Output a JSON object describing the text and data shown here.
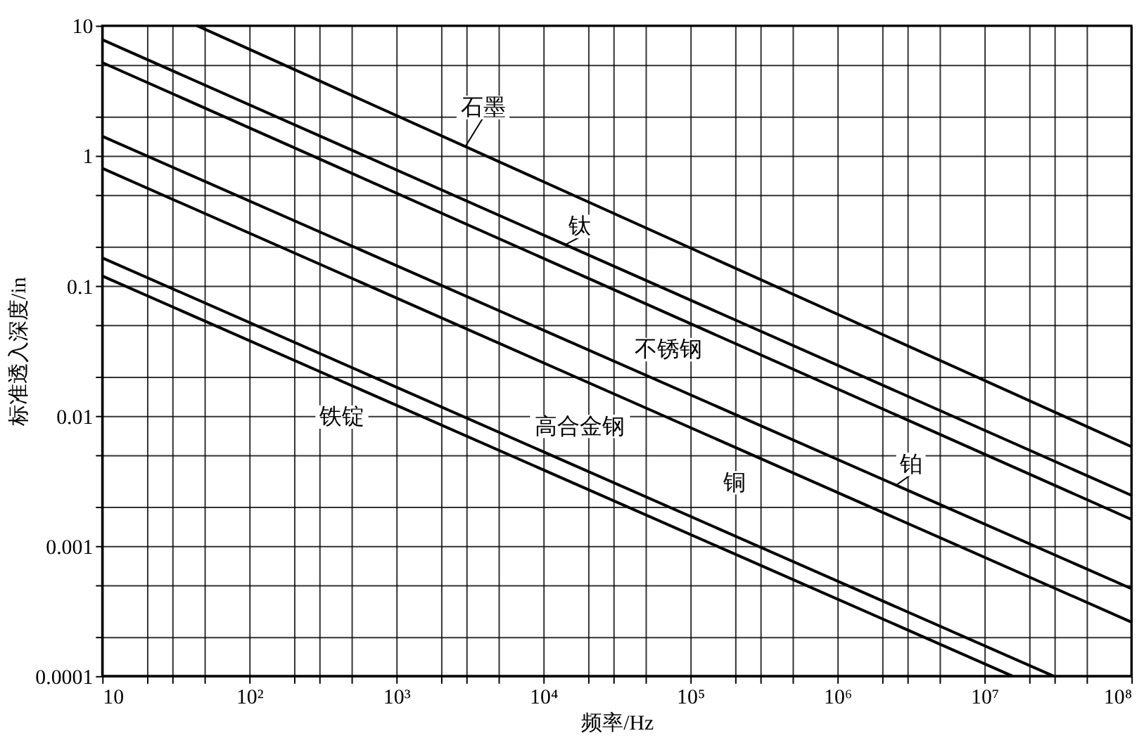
{
  "chart_data": {
    "type": "line",
    "xlabel": "频率/Hz",
    "ylabel": "标准透入深度/in",
    "log": "xy",
    "grid": true,
    "legend": false,
    "marker": "none",
    "line_style": "solid",
    "xlim": [
      10,
      100000000
    ],
    "xticks": [
      {
        "value": 10,
        "label": "10"
      },
      {
        "value": 20,
        "label": null
      },
      {
        "value": 30,
        "label": null
      },
      {
        "value": 50,
        "label": null
      },
      {
        "value": 100,
        "label": "10²"
      },
      {
        "value": 200,
        "label": null
      },
      {
        "value": 300,
        "label": null
      },
      {
        "value": 500,
        "label": null
      },
      {
        "value": 1000,
        "label": "10³"
      },
      {
        "value": 2000,
        "label": null
      },
      {
        "value": 3000,
        "label": null
      },
      {
        "value": 5000,
        "label": null
      },
      {
        "value": 10000,
        "label": "10⁴"
      },
      {
        "value": 20000,
        "label": null
      },
      {
        "value": 30000,
        "label": null
      },
      {
        "value": 50000,
        "label": null
      },
      {
        "value": 100000,
        "label": "10⁵"
      },
      {
        "value": 200000,
        "label": null
      },
      {
        "value": 300000,
        "label": null
      },
      {
        "value": 500000,
        "label": null
      },
      {
        "value": 1000000,
        "label": "10⁶"
      },
      {
        "value": 2000000,
        "label": null
      },
      {
        "value": 3000000,
        "label": null
      },
      {
        "value": 5000000,
        "label": null
      },
      {
        "value": 10000000,
        "label": "10⁷"
      },
      {
        "value": 20000000,
        "label": null
      },
      {
        "value": 30000000,
        "label": null
      },
      {
        "value": 50000000,
        "label": null
      },
      {
        "value": 100000000,
        "label": "10⁸"
      }
    ],
    "ylim": [
      0.0001,
      10
    ],
    "yticks": [
      0.0001,
      {
        "value": 0.0002,
        "label": null
      },
      {
        "value": 0.0005,
        "label": null
      },
      0.001,
      {
        "value": 0.002,
        "label": null
      },
      {
        "value": 0.005,
        "label": null
      },
      0.01,
      {
        "value": 0.02,
        "label": null
      },
      {
        "value": 0.05,
        "label": null
      },
      0.1,
      {
        "value": 0.2,
        "label": null
      },
      {
        "value": 0.5,
        "label": null
      },
      1,
      {
        "value": 2,
        "label": null
      },
      {
        "value": 5,
        "label": null
      },
      10
    ],
    "series": [
      {
        "name": "石墨",
        "color": "#000000",
        "x": [
          44,
          100000000
        ],
        "values": [
          10,
          0.0058
        ]
      },
      {
        "name": "钛",
        "color": "#000000",
        "x": [
          10,
          100000000
        ],
        "values": [
          7.8,
          0.00245
        ]
      },
      {
        "name": "不锈钢",
        "color": "#000000",
        "x": [
          10,
          100000000
        ],
        "values": [
          5.2,
          0.0016
        ]
      },
      {
        "name": "铂",
        "color": "#000000",
        "x": [
          10,
          100000000
        ],
        "values": [
          1.41,
          0.00047
        ]
      },
      {
        "name": "铜",
        "color": "#000000",
        "x": [
          10,
          100000000
        ],
        "values": [
          0.8,
          0.00026
        ]
      },
      {
        "name": "高合金钢",
        "color": "#000000",
        "x": [
          10,
          29500000
        ],
        "values": [
          0.164,
          0.0001
        ]
      },
      {
        "name": "铁锭",
        "color": "#000000",
        "x": [
          10,
          15500000
        ],
        "values": [
          0.119,
          0.0001
        ]
      }
    ]
  }
}
